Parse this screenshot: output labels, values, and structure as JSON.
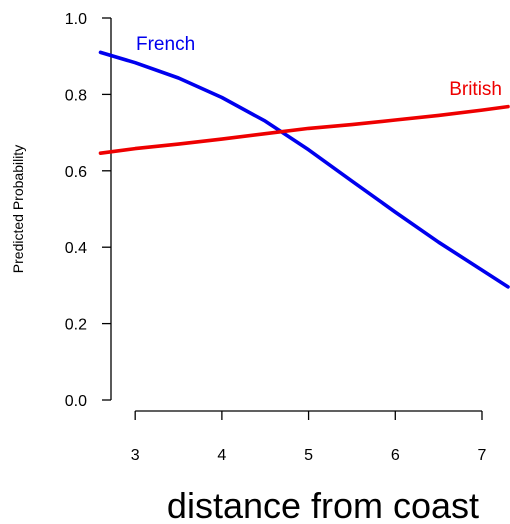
{
  "chart_data": {
    "type": "line",
    "title": "",
    "xlabel": "distance from coast",
    "ylabel": "Predicted Probability",
    "xlim": [
      2.6,
      7.3
    ],
    "ylim": [
      0.0,
      1.0
    ],
    "x_ticks": [
      3,
      4,
      5,
      6,
      7
    ],
    "y_ticks": [
      0.0,
      0.2,
      0.4,
      0.6,
      0.8,
      1.0
    ],
    "x_tick_labels": [
      "3",
      "4",
      "5",
      "6",
      "7"
    ],
    "y_tick_labels": [
      "0.0",
      "0.2",
      "0.4",
      "0.6",
      "0.8",
      "1.0"
    ],
    "grid": false,
    "legend": "inline-labels",
    "series": [
      {
        "name": "French",
        "color": "#0000ee",
        "x": [
          2.6,
          3.0,
          3.5,
          4.0,
          4.5,
          5.0,
          5.5,
          6.0,
          6.5,
          7.0,
          7.3
        ],
        "y": [
          0.91,
          0.883,
          0.843,
          0.792,
          0.73,
          0.655,
          0.573,
          0.492,
          0.413,
          0.34,
          0.296
        ]
      },
      {
        "name": "British",
        "color": "#ee0000",
        "x": [
          2.6,
          3.0,
          3.5,
          4.0,
          4.5,
          5.0,
          5.5,
          6.0,
          6.5,
          7.0,
          7.3
        ],
        "y": [
          0.646,
          0.658,
          0.67,
          0.683,
          0.697,
          0.711,
          0.721,
          0.733,
          0.745,
          0.759,
          0.768
        ]
      }
    ]
  }
}
